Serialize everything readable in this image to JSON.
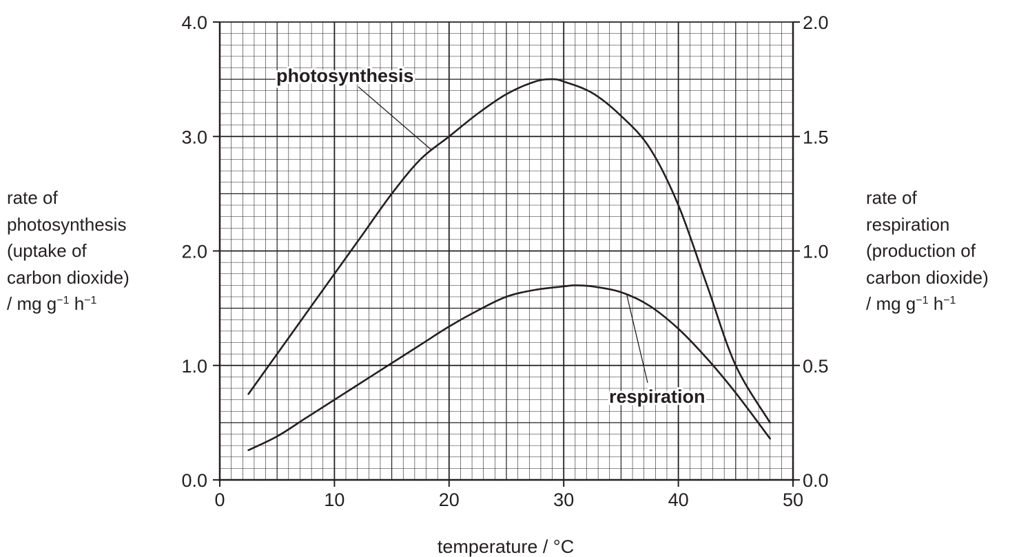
{
  "chart_data": {
    "type": "line",
    "xlabel": "temperature / °C",
    "xlim": [
      0,
      50
    ],
    "x_ticks": [
      "0",
      "10",
      "20",
      "30",
      "40",
      "50"
    ],
    "y_left": {
      "label_lines": [
        "rate of",
        "photosynthesis",
        "(uptake of",
        "carbon dioxide)"
      ],
      "unit_prefix": "/ mg g",
      "unit_exp1": "−1",
      "unit_mid": " h",
      "unit_exp2": "−1",
      "ylim": [
        0,
        4
      ],
      "ticks": [
        "0.0",
        "1.0",
        "2.0",
        "3.0",
        "4.0"
      ]
    },
    "y_right": {
      "label_lines": [
        "rate of",
        "respiration",
        "(production of",
        "carbon dioxide)"
      ],
      "unit_prefix": "/ mg g",
      "unit_exp1": "−1",
      "unit_mid": " h",
      "unit_exp2": "−1",
      "ylim": [
        0,
        2
      ],
      "ticks": [
        "0.0",
        "0.5",
        "1.0",
        "1.5",
        "2.0"
      ]
    },
    "grid": true,
    "series": [
      {
        "name": "photosynthesis",
        "axis": "left",
        "x": [
          2.5,
          5,
          7.5,
          10,
          12.5,
          15,
          17.5,
          20,
          22.5,
          25,
          27.5,
          29,
          30,
          32.5,
          35,
          37.5,
          40,
          42.5,
          45,
          48
        ],
        "y": [
          0.75,
          1.1,
          1.45,
          1.8,
          2.15,
          2.5,
          2.8,
          3.0,
          3.2,
          3.37,
          3.48,
          3.5,
          3.48,
          3.38,
          3.18,
          2.9,
          2.4,
          1.7,
          1.0,
          0.5
        ]
      },
      {
        "name": "respiration",
        "axis": "right",
        "x": [
          2.5,
          5,
          7.5,
          10,
          12.5,
          15,
          17.5,
          20,
          22.5,
          25,
          27.5,
          30,
          31,
          32.5,
          35,
          37.5,
          40,
          42.5,
          45,
          48
        ],
        "y": [
          0.13,
          0.19,
          0.27,
          0.35,
          0.43,
          0.51,
          0.59,
          0.67,
          0.74,
          0.8,
          0.83,
          0.845,
          0.85,
          0.845,
          0.82,
          0.76,
          0.66,
          0.53,
          0.38,
          0.18
        ]
      }
    ],
    "annotations": [
      {
        "text": "photosynthesis",
        "series": "photosynthesis",
        "points_to_x": 18.5
      },
      {
        "text": "respiration",
        "series": "respiration",
        "points_to_x": 35.5
      }
    ]
  }
}
